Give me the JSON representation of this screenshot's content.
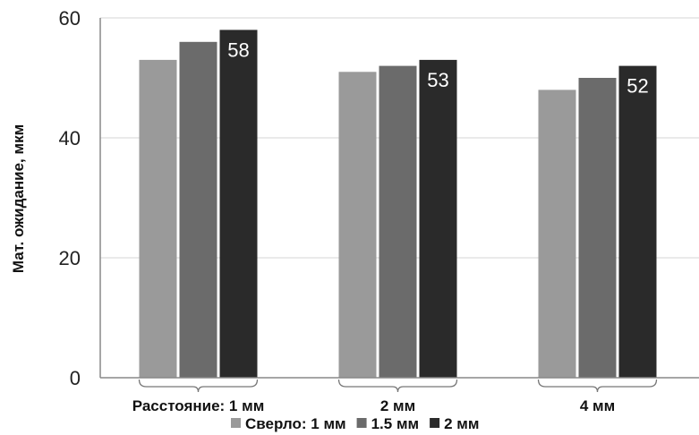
{
  "chart_data": {
    "type": "bar",
    "ylabel": "Мат. ожидание, мкм",
    "ylim": [
      0,
      60
    ],
    "yticks": [
      0,
      20,
      40,
      60
    ],
    "grid": true,
    "categories": [
      "Расстояние: 1 мм",
      "2 мм",
      "4 мм"
    ],
    "series": [
      {
        "name": "Сверло: 1 мм",
        "color": "#9a9a9a",
        "values": [
          53,
          51,
          48
        ]
      },
      {
        "name": "1.5 мм",
        "color": "#6b6b6b",
        "values": [
          56,
          52,
          50
        ]
      },
      {
        "name": "2 мм",
        "color": "#2a2a2a",
        "values": [
          58,
          53,
          52
        ]
      }
    ],
    "data_labels": {
      "series_index": 2,
      "values": [
        "58",
        "53",
        "52"
      ]
    },
    "legend_position": "bottom"
  }
}
